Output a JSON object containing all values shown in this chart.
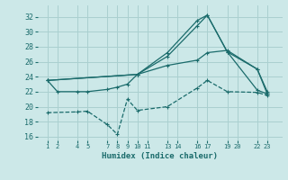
{
  "xlabel": "Humidex (Indice chaleur)",
  "bg_color": "#cce8e8",
  "grid_color": "#aad0d0",
  "line_color": "#1a6b6b",
  "ylim": [
    15.5,
    33.5
  ],
  "yticks": [
    16,
    18,
    20,
    22,
    24,
    26,
    28,
    30,
    32
  ],
  "xlim": [
    0.0,
    24.5
  ],
  "xtick_positions": [
    1,
    2,
    4,
    5,
    7,
    8,
    9,
    10,
    11,
    13,
    14,
    16,
    17,
    19,
    20,
    22,
    23
  ],
  "xtick_labels": [
    "1",
    "2",
    "4",
    "5",
    "7",
    "8",
    "9",
    "10",
    "11",
    "13",
    "14",
    "16",
    "17",
    "19",
    "20",
    "22",
    "23"
  ],
  "line1_x": [
    1,
    10,
    13,
    16,
    17,
    19,
    22,
    23
  ],
  "line1_y": [
    23.5,
    24.3,
    27.2,
    31.5,
    32.2,
    27.3,
    22.2,
    21.7
  ],
  "line2_x": [
    1,
    10,
    13,
    16,
    17,
    19,
    22,
    23
  ],
  "line2_y": [
    23.5,
    24.3,
    26.7,
    30.8,
    32.2,
    27.3,
    25.0,
    21.7
  ],
  "line3_x": [
    1,
    4,
    5,
    7,
    8,
    9,
    10,
    13,
    16,
    17,
    19,
    22,
    23
  ],
  "line3_y": [
    19.2,
    19.3,
    19.4,
    17.6,
    16.3,
    21.0,
    19.5,
    20.0,
    22.5,
    23.5,
    22.0,
    21.9,
    21.5
  ],
  "line4_x": [
    1,
    2,
    4,
    5,
    7,
    8,
    9,
    10,
    13,
    16,
    17,
    19,
    22,
    23
  ],
  "line4_y": [
    23.5,
    22.0,
    22.0,
    22.0,
    22.3,
    22.6,
    23.0,
    24.3,
    25.5,
    26.2,
    27.2,
    27.5,
    25.0,
    22.0
  ]
}
